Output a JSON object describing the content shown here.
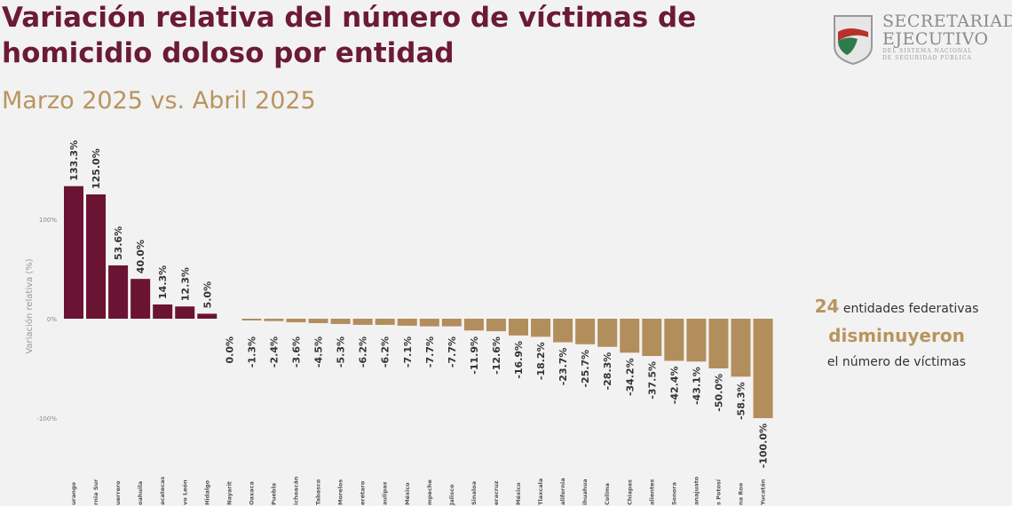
{
  "header": {
    "title": "Variación relativa del número de víctimas de homicidio doloso por entidad",
    "subtitle": "Marzo 2025 vs. Abril 2025"
  },
  "logo": {
    "line1": "SECRETARIADO",
    "line2": "EJECUTIVO",
    "line3": "DEL SISTEMA NACIONAL",
    "line4": "DE SEGURIDAD PÚBLICA"
  },
  "note": {
    "count": "24",
    "text1": "entidades federativas",
    "text2": "disminuyeron",
    "text3": "el número de víctimas"
  },
  "chart_data": {
    "type": "bar",
    "ylabel": "Variación relativa (%)",
    "ylim": [
      -100,
      150
    ],
    "yticks": [
      "100%",
      "0%",
      "-100%"
    ],
    "ytick_values": [
      100,
      0,
      -100
    ],
    "grid": false,
    "colors": {
      "increase": "#6b1332",
      "decrease": "#b38e5d"
    },
    "categories": [
      "urango",
      "rnia Sur",
      "uerrero",
      "oahuila",
      "acatecas",
      "vo León",
      "Hidalgo",
      "Nayarit",
      "Oaxaca",
      "Puebla",
      "ichoacán",
      "Tabasco",
      "Morelos",
      "erétaro",
      "aulipas",
      "México",
      "mpeche",
      "Jalisco",
      "Sinaloa",
      "eracruz",
      "México",
      "Tlaxcala",
      "alifornia",
      "ihuahua",
      "Colima",
      "Chiapas",
      "alientes",
      "Sonora",
      "anajuato",
      "s Potosí",
      "na Roo",
      "Yucatán"
    ],
    "values": [
      133.3,
      125.0,
      53.6,
      40.0,
      14.3,
      12.3,
      5.0,
      0.0,
      -1.3,
      -2.4,
      -3.6,
      -4.5,
      -5.3,
      -6.2,
      -6.2,
      -7.1,
      -7.7,
      -7.7,
      -11.9,
      -12.6,
      -16.9,
      -18.2,
      -23.7,
      -25.7,
      -28.3,
      -34.2,
      -37.5,
      -42.4,
      -43.1,
      -50.0,
      -58.3,
      -100.0
    ],
    "labels": [
      "133.3%",
      "125.0%",
      "53.6%",
      "40.0%",
      "14.3%",
      "12.3%",
      "5.0%",
      "0.0%",
      "-1.3%",
      "-2.4%",
      "-3.6%",
      "-4.5%",
      "-5.3%",
      "-6.2%",
      "-6.2%",
      "-7.1%",
      "-7.7%",
      "-7.7%",
      "-11.9%",
      "-12.6%",
      "-16.9%",
      "-18.2%",
      "-23.7%",
      "-25.7%",
      "-28.3%",
      "-34.2%",
      "-37.5%",
      "-42.4%",
      "-43.1%",
      "-50.0%",
      "-58.3%",
      "-100.0%"
    ]
  }
}
